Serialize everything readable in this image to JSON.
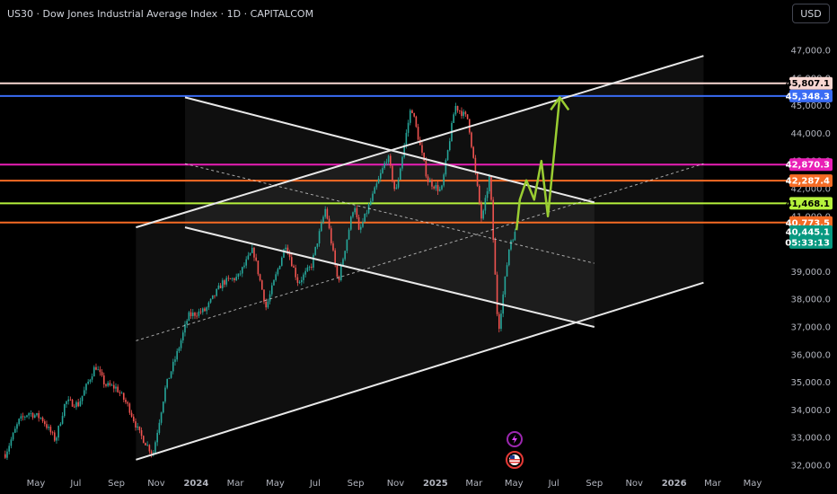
{
  "header": {
    "title": "US30 · Dow Jones Industrial Average Index · 1D · CAPITALCOM",
    "currency_button": "USD"
  },
  "colors": {
    "background": "#000000",
    "candle_up": "#26a69a",
    "candle_down": "#ef5350",
    "channel_line": "#e8e8e8",
    "arrow": "#9acd32",
    "lvl_45807": "#f8d7d2",
    "lvl_45348": "#3a6cf4",
    "lvl_42870": "#e91eb6",
    "lvl_42287": "#f56b24",
    "lvl_41468": "#b6f23c",
    "lvl_40773": "#f56b24",
    "last_price": "#089981"
  },
  "chart_data": {
    "type": "candlestick",
    "y_axis": {
      "range": [
        31800,
        47500
      ],
      "ticks": [
        47000,
        46000,
        45000,
        44000,
        43000,
        42000,
        41000,
        40000,
        39000,
        38000,
        37000,
        36000,
        35000,
        34000,
        33000,
        32000
      ],
      "tick_labels": [
        "47,000.0",
        "46,000.0",
        "45,000.0",
        "44,000.0",
        "43,000.0",
        "42,000.0",
        "41,000.0",
        "40,000.0",
        "39,000.0",
        "38,000.0",
        "37,000.0",
        "36,000.0",
        "35,000.0",
        "34,000.0",
        "33,000.0",
        "32,000.0"
      ]
    },
    "x_axis": {
      "labels": [
        {
          "text": "May",
          "date": "2023-05-01"
        },
        {
          "text": "Jul",
          "date": "2023-07-01"
        },
        {
          "text": "Sep",
          "date": "2023-09-01"
        },
        {
          "text": "Nov",
          "date": "2023-11-01"
        },
        {
          "text": "2024",
          "date": "2024-01-01",
          "bold": true
        },
        {
          "text": "Mar",
          "date": "2024-03-01"
        },
        {
          "text": "May",
          "date": "2024-05-01"
        },
        {
          "text": "Jul",
          "date": "2024-07-01"
        },
        {
          "text": "Sep",
          "date": "2024-09-01"
        },
        {
          "text": "Nov",
          "date": "2024-11-01"
        },
        {
          "text": "2025",
          "date": "2025-01-01",
          "bold": true
        },
        {
          "text": "Mar",
          "date": "2025-03-01"
        },
        {
          "text": "May",
          "date": "2025-05-01"
        },
        {
          "text": "Jul",
          "date": "2025-07-01"
        },
        {
          "text": "Sep",
          "date": "2025-09-01"
        },
        {
          "text": "Nov",
          "date": "2025-11-01"
        },
        {
          "text": "2026",
          "date": "2026-01-01",
          "bold": true
        },
        {
          "text": "Mar",
          "date": "2026-03-01"
        },
        {
          "text": "May",
          "date": "2026-05-01"
        }
      ]
    },
    "price_path": [
      {
        "date": "2023-03-15",
        "price": 32400
      },
      {
        "date": "2023-04-05",
        "price": 33600
      },
      {
        "date": "2023-04-20",
        "price": 33900
      },
      {
        "date": "2023-05-10",
        "price": 33700
      },
      {
        "date": "2023-05-31",
        "price": 32900
      },
      {
        "date": "2023-06-15",
        "price": 34300
      },
      {
        "date": "2023-07-05",
        "price": 34200
      },
      {
        "date": "2023-07-31",
        "price": 35600
      },
      {
        "date": "2023-08-15",
        "price": 34900
      },
      {
        "date": "2023-09-01",
        "price": 34800
      },
      {
        "date": "2023-09-20",
        "price": 34100
      },
      {
        "date": "2023-10-05",
        "price": 33200
      },
      {
        "date": "2023-10-27",
        "price": 32400
      },
      {
        "date": "2023-11-15",
        "price": 34800
      },
      {
        "date": "2023-12-05",
        "price": 36200
      },
      {
        "date": "2023-12-20",
        "price": 37400
      },
      {
        "date": "2024-01-15",
        "price": 37600
      },
      {
        "date": "2024-02-10",
        "price": 38600
      },
      {
        "date": "2024-03-05",
        "price": 38800
      },
      {
        "date": "2024-03-28",
        "price": 39800
      },
      {
        "date": "2024-04-17",
        "price": 37700
      },
      {
        "date": "2024-05-17",
        "price": 40000
      },
      {
        "date": "2024-06-05",
        "price": 38600
      },
      {
        "date": "2024-06-25",
        "price": 39200
      },
      {
        "date": "2024-07-17",
        "price": 41300
      },
      {
        "date": "2024-08-05",
        "price": 38600
      },
      {
        "date": "2024-08-30",
        "price": 41500
      },
      {
        "date": "2024-09-06",
        "price": 40400
      },
      {
        "date": "2024-10-20",
        "price": 43200
      },
      {
        "date": "2024-11-01",
        "price": 41800
      },
      {
        "date": "2024-11-25",
        "price": 45000
      },
      {
        "date": "2024-12-20",
        "price": 42300
      },
      {
        "date": "2025-01-10",
        "price": 41900
      },
      {
        "date": "2025-01-31",
        "price": 45000
      },
      {
        "date": "2025-02-20",
        "price": 44500
      },
      {
        "date": "2025-03-13",
        "price": 40800
      },
      {
        "date": "2025-03-25",
        "price": 42500
      },
      {
        "date": "2025-04-07",
        "price": 36800
      },
      {
        "date": "2025-04-25",
        "price": 40100
      },
      {
        "date": "2025-05-05",
        "price": 40445
      }
    ],
    "horizontal_levels": [
      {
        "label": "45,807.1",
        "value": 45807.1,
        "color": "#f8d7d2",
        "text_color": "#000000"
      },
      {
        "label": "45,348.3",
        "value": 45348.3,
        "color": "#3a6cf4",
        "text_color": "#ffffff"
      },
      {
        "label": "42,870.3",
        "value": 42870.3,
        "color": "#e91eb6",
        "text_color": "#ffffff"
      },
      {
        "label": "42,287.4",
        "value": 42287.4,
        "color": "#f56b24",
        "text_color": "#ffffff"
      },
      {
        "label": "41,468.1",
        "value": 41468.1,
        "color": "#b6f23c",
        "text_color": "#000000"
      },
      {
        "label": "40,773.5",
        "value": 40773.5,
        "color": "#f56b24",
        "text_color": "#ffffff"
      }
    ],
    "last_price": {
      "label": "40,445.1",
      "value": 40445.1,
      "countdown": "05:33:13",
      "color": "#089981"
    },
    "channels": [
      {
        "name": "rising",
        "x1": "2023-10-01",
        "x2": "2026-02-15",
        "upper": [
          40600,
          46800
        ],
        "middle": [
          36500,
          42900
        ],
        "lower": [
          32200,
          38600
        ]
      },
      {
        "name": "falling",
        "x1": "2023-12-15",
        "x2": "2025-09-01",
        "upper": [
          45300,
          41500
        ],
        "middle": [
          42900,
          39300
        ],
        "lower": [
          40600,
          37000
        ]
      }
    ],
    "projection_path": [
      {
        "date": "2025-05-05",
        "price": 40500
      },
      {
        "date": "2025-05-10",
        "price": 41600
      },
      {
        "date": "2025-05-20",
        "price": 42300
      },
      {
        "date": "2025-06-01",
        "price": 41600
      },
      {
        "date": "2025-06-12",
        "price": 43000
      },
      {
        "date": "2025-06-22",
        "price": 41000
      },
      {
        "date": "2025-07-10",
        "price": 45300
      }
    ]
  }
}
